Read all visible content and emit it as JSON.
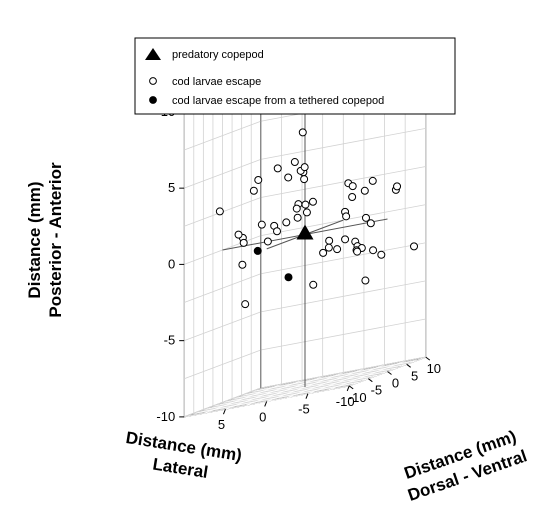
{
  "chart_data": {
    "type": "scatter",
    "projection": "3d",
    "axes": {
      "x": {
        "label_lines": [
          "Distance (mm)",
          "Lateral"
        ],
        "range": [
          -10,
          10
        ],
        "ticks": [
          5,
          0,
          -5,
          -10
        ]
      },
      "y": {
        "label_lines": [
          "Distance (mm)",
          "Dorsal - Ventral"
        ],
        "range": [
          -10,
          10
        ],
        "ticks": [
          -10,
          -5,
          0,
          5,
          10
        ]
      },
      "z": {
        "label_lines": [
          "Distance (mm)",
          "Posterior - Anterior"
        ],
        "range": [
          -10,
          10
        ],
        "ticks": [
          -10,
          -5,
          0,
          5,
          10
        ]
      }
    },
    "grid": true,
    "floor_color": "#d6d6d6",
    "legend": {
      "position": "top",
      "entries": [
        {
          "label": "predatory copepod",
          "marker": "filled-triangle"
        },
        {
          "label": "cod larvae escape",
          "marker": "open-circle"
        },
        {
          "label": "cod larvae escape from a tethered copepod",
          "marker": "filled-circle"
        }
      ]
    },
    "series": [
      {
        "name": "predatory copepod",
        "marker": "filled-triangle",
        "points": [
          {
            "x": 0,
            "y": 0,
            "z": 0
          }
        ]
      },
      {
        "name": "cod larvae escape",
        "marker": "open-circle",
        "points": [
          {
            "x": 0.5,
            "y": 0.5,
            "z": 6.7
          },
          {
            "x": 1.0,
            "y": -0.5,
            "z": 4.9
          },
          {
            "x": 0.2,
            "y": 0.0,
            "z": 4.1
          },
          {
            "x": 0.8,
            "y": 0.6,
            "z": 4.2
          },
          {
            "x": 2.5,
            "y": 1.0,
            "z": 3.9
          },
          {
            "x": 1.5,
            "y": 3.0,
            "z": 3.5
          },
          {
            "x": 1.2,
            "y": 2.5,
            "z": 4.3
          },
          {
            "x": 4.0,
            "y": 1.5,
            "z": 4.6
          },
          {
            "x": 6.2,
            "y": 0.0,
            "z": 3.5
          },
          {
            "x": 5.2,
            "y": -1.0,
            "z": 4.2
          },
          {
            "x": -2.0,
            "y": 7.0,
            "z": 2.5
          },
          {
            "x": -2.0,
            "y": 8.0,
            "z": 1.5
          },
          {
            "x": -4.0,
            "y": 7.0,
            "z": 1.8
          },
          {
            "x": -3.0,
            "y": 6.0,
            "z": 2.3
          },
          {
            "x": -4.5,
            "y": 8.0,
            "z": 2.3
          },
          {
            "x": -8.0,
            "y": 6.5,
            "z": 1.5
          },
          {
            "x": -8.0,
            "y": 6.8,
            "z": 1.7
          },
          {
            "x": 1.5,
            "y": 1.5,
            "z": 2.0
          },
          {
            "x": 0.5,
            "y": 1.2,
            "z": 1.9
          },
          {
            "x": -0.5,
            "y": 1.0,
            "z": 2.0
          },
          {
            "x": 1.0,
            "y": 0.0,
            "z": 1.8
          },
          {
            "x": 0.0,
            "y": 0.5,
            "z": 1.4
          },
          {
            "x": 0.8,
            "y": -0.2,
            "z": 1.2
          },
          {
            "x": 2.5,
            "y": 0.5,
            "z": 1.0
          },
          {
            "x": 4.2,
            "y": 1.0,
            "z": 0.9
          },
          {
            "x": 5.0,
            "y": -0.5,
            "z": 1.2
          },
          {
            "x": 8.0,
            "y": 1.0,
            "z": 0.5
          },
          {
            "x": 6.5,
            "y": -2.0,
            "z": 0.3
          },
          {
            "x": -3.0,
            "y": 4.0,
            "z": 0.8
          },
          {
            "x": -2.2,
            "y": 6.0,
            "z": 0.4
          },
          {
            "x": -3.8,
            "y": 9.0,
            "z": -0.5
          },
          {
            "x": -6.0,
            "y": 3.0,
            "z": 0.2
          },
          {
            "x": -2.0,
            "y": 2.0,
            "z": -0.8
          },
          {
            "x": -1.5,
            "y": 3.0,
            "z": -1.3
          },
          {
            "x": -2.5,
            "y": 3.0,
            "z": -1.5
          },
          {
            "x": -3.0,
            "y": 4.0,
            "z": -1.0
          },
          {
            "x": -4.0,
            "y": 4.5,
            "z": -1.3
          },
          {
            "x": -4.5,
            "y": 4.0,
            "z": -1.6
          },
          {
            "x": -4.8,
            "y": 4.5,
            "z": -1.8
          },
          {
            "x": -1.5,
            "y": 1.5,
            "z": -1.5
          },
          {
            "x": -3.0,
            "y": 7.0,
            "z": -2.0
          },
          {
            "x": -4.0,
            "y": 5.0,
            "z": -2.0
          },
          {
            "x": -5.0,
            "y": 7.0,
            "z": -2.2
          },
          {
            "x": -6.0,
            "y": 7.0,
            "z": -2.6
          },
          {
            "x": -9.5,
            "y": 8.0,
            "z": -2.5
          },
          {
            "x": -1.0,
            "y": 0.0,
            "z": -3.4
          },
          {
            "x": -5.0,
            "y": 5.0,
            "z": -4.0
          },
          {
            "x": 4.5,
            "y": 0.0,
            "z": 0.0
          },
          {
            "x": 2.0,
            "y": -3.0,
            "z": 0.7
          },
          {
            "x": 6.2,
            "y": -4.0,
            "z": 1.0
          },
          {
            "x": 8.0,
            "y": -5.0,
            "z": 2.8
          },
          {
            "x": 5.5,
            "y": -4.5,
            "z": -1.0
          },
          {
            "x": 4.0,
            "y": -7.0,
            "z": -3.5
          }
        ]
      },
      {
        "name": "cod larvae escape from a tethered copepod",
        "marker": "filled-circle",
        "points": [
          {
            "x": 4.8,
            "y": -2.0,
            "z": -0.4
          },
          {
            "x": 2.0,
            "y": 0.0,
            "z": -2.6
          }
        ]
      }
    ]
  }
}
